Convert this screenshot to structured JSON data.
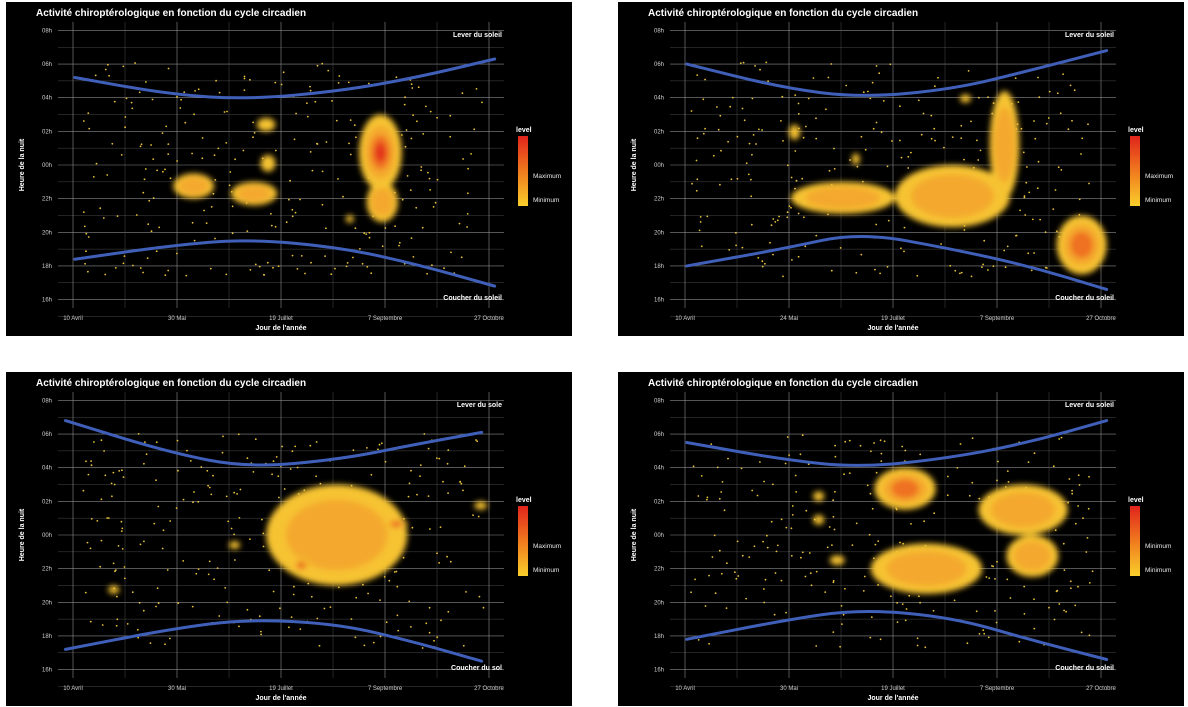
{
  "chart_data": [
    {
      "type": "heatmap",
      "title": "Activité chiroptérologique en fonction du cycle circadien",
      "xlabel": "Jour de l'année",
      "ylabel": "Heure de la nuit",
      "x_ticks": [
        "10 Avril",
        "30 Mai",
        "19 Juillet",
        "7 Septembre",
        "27 Octobre"
      ],
      "y_ticks": [
        "08h",
        "06h",
        "04h",
        "02h",
        "00h",
        "22h",
        "20h",
        "18h",
        "16h"
      ],
      "xlim": [
        "2021-03-11",
        "2021-11-06"
      ],
      "ylim": [
        15.5,
        32.5
      ],
      "sunrise_label": "Lever du soleil",
      "sunset_label": "Coucher du soleil",
      "legend": {
        "title": "level",
        "max_label": "Maximum",
        "min_label": "Minimum"
      },
      "sunrise_curve": [
        [
          "2021-03-20",
          29.2
        ],
        [
          "2021-05-10",
          28.2
        ],
        [
          "2021-06-21",
          27.9
        ],
        [
          "2021-08-10",
          28.4
        ],
        [
          "2021-09-20",
          29.2
        ],
        [
          "2021-11-01",
          30.3
        ]
      ],
      "sunset_curve": [
        [
          "2021-03-20",
          18.4
        ],
        [
          "2021-05-10",
          19.2
        ],
        [
          "2021-06-21",
          19.6
        ],
        [
          "2021-08-10",
          19.1
        ],
        [
          "2021-09-20",
          18.1
        ],
        [
          "2021-11-01",
          16.8
        ]
      ],
      "density_areas": [
        {
          "x": [
            "2021-05-12",
            "2021-06-03"
          ],
          "y": [
            22.0,
            23.5
          ],
          "level": 0.55
        },
        {
          "x": [
            "2021-06-12",
            "2021-07-07"
          ],
          "y": [
            21.6,
            23.0
          ],
          "level": 0.4
        },
        {
          "x": [
            "2021-06-26",
            "2021-07-06"
          ],
          "y": [
            26.0,
            26.8
          ],
          "level": 0.2
        },
        {
          "x": [
            "2021-06-28",
            "2021-07-06"
          ],
          "y": [
            23.6,
            24.6
          ],
          "level": 0.2
        },
        {
          "x": [
            "2021-08-13",
            "2021-08-17"
          ],
          "y": [
            20.6,
            21.0
          ],
          "level": 0.15
        },
        {
          "x": [
            "2021-08-20",
            "2021-09-12"
          ],
          "y": [
            22.5,
            27.0
          ],
          "level": 0.85
        },
        {
          "x": [
            "2021-08-24",
            "2021-09-10"
          ],
          "y": [
            20.6,
            23.0
          ],
          "level": 0.5
        }
      ]
    },
    {
      "type": "heatmap",
      "title": "Activité chiroptérologique en fonction du cycle circadien",
      "xlabel": "Jour de l'année",
      "ylabel": "Heure de la nuit",
      "x_ticks": [
        "10 Avril",
        "24 Mai",
        "19 Juillet",
        "7 Septembre",
        "27 Octobre"
      ],
      "y_ticks": [
        "08h",
        "06h",
        "04h",
        "02h",
        "00h",
        "22h",
        "20h",
        "18h",
        "16h"
      ],
      "xlim": [
        "2021-03-11",
        "2021-11-06"
      ],
      "ylim": [
        15.5,
        32.5
      ],
      "sunrise_label": "Lever du soleil",
      "sunset_label": "Coucher du soleil",
      "legend": {
        "title": "level",
        "max_label": "Maximum",
        "min_label": "Minimum"
      },
      "sunrise_curve": [
        [
          "2021-03-20",
          30.0
        ],
        [
          "2021-05-10",
          28.6
        ],
        [
          "2021-06-21",
          28.0
        ],
        [
          "2021-08-10",
          28.5
        ],
        [
          "2021-09-20",
          29.6
        ],
        [
          "2021-11-01",
          30.8
        ]
      ],
      "sunset_curve": [
        [
          "2021-03-20",
          18.0
        ],
        [
          "2021-05-10",
          19.0
        ],
        [
          "2021-06-21",
          20.0
        ],
        [
          "2021-08-10",
          19.0
        ],
        [
          "2021-09-20",
          18.0
        ],
        [
          "2021-11-01",
          16.6
        ]
      ],
      "density_areas": [
        {
          "x": [
            "2021-05-14",
            "2021-05-20"
          ],
          "y": [
            25.5,
            26.4
          ],
          "level": 0.2
        },
        {
          "x": [
            "2021-06-17",
            "2021-06-21"
          ],
          "y": [
            24.0,
            24.7
          ],
          "level": 0.15
        },
        {
          "x": [
            "2021-05-15",
            "2021-07-10"
          ],
          "y": [
            21.1,
            23.0
          ],
          "level": 0.5
        },
        {
          "x": [
            "2021-07-10",
            "2021-09-10"
          ],
          "y": [
            20.3,
            24.0
          ],
          "level": 0.6
        },
        {
          "x": [
            "2021-08-30",
            "2021-09-15"
          ],
          "y": [
            22.0,
            28.4
          ],
          "level": 0.55
        },
        {
          "x": [
            "2021-08-14",
            "2021-08-20"
          ],
          "y": [
            27.7,
            28.2
          ],
          "level": 0.2
        },
        {
          "x": [
            "2021-10-05",
            "2021-11-01"
          ],
          "y": [
            17.5,
            21.0
          ],
          "level": 0.7
        }
      ]
    },
    {
      "type": "heatmap",
      "title": "Activité chiroptérologique en fonction du cycle circadien",
      "xlabel": "Jour de l'année",
      "ylabel": "Heure de la nuit",
      "x_ticks": [
        "10 Avril",
        "30 Mai",
        "19 Juillet",
        "7 Septembre",
        "27 Octobre"
      ],
      "y_ticks": [
        "08h",
        "06h",
        "04h",
        "02h",
        "00h",
        "22h",
        "20h",
        "18h",
        "16h"
      ],
      "xlim": [
        "2021-03-11",
        "2021-11-06"
      ],
      "ylim": [
        15.5,
        32.5
      ],
      "sunrise_label": "Lever du sole",
      "sunset_label": "Coucher du sol",
      "legend": {
        "title": "level",
        "max_label": "Maximum",
        "min_label": "Minimum"
      },
      "sunrise_curve": [
        [
          "2021-03-15",
          30.8
        ],
        [
          "2021-05-10",
          28.9
        ],
        [
          "2021-06-21",
          28.0
        ],
        [
          "2021-08-10",
          28.5
        ],
        [
          "2021-09-20",
          29.4
        ],
        [
          "2021-10-25",
          30.1
        ]
      ],
      "sunset_curve": [
        [
          "2021-03-15",
          17.2
        ],
        [
          "2021-05-10",
          18.4
        ],
        [
          "2021-06-21",
          19.0
        ],
        [
          "2021-08-10",
          18.7
        ],
        [
          "2021-09-20",
          17.6
        ],
        [
          "2021-10-25",
          16.5
        ]
      ],
      "density_areas": [
        {
          "x": [
            "2021-07-01",
            "2021-09-15"
          ],
          "y": [
            21.0,
            27.0
          ],
          "level": 0.55
        },
        {
          "x": [
            "2021-09-03",
            "2021-09-15"
          ],
          "y": [
            24.3,
            25.0
          ],
          "level": 0.85
        },
        {
          "x": [
            "2021-07-15",
            "2021-07-25"
          ],
          "y": [
            21.8,
            22.6
          ],
          "level": 0.85
        },
        {
          "x": [
            "2021-06-11",
            "2021-06-17"
          ],
          "y": [
            23.2,
            23.6
          ],
          "level": 0.15
        },
        {
          "x": [
            "2021-04-07",
            "2021-04-13"
          ],
          "y": [
            20.5,
            21.0
          ],
          "level": 0.15
        },
        {
          "x": [
            "2021-10-21",
            "2021-10-28"
          ],
          "y": [
            25.5,
            26.0
          ],
          "level": 0.15
        }
      ]
    },
    {
      "type": "heatmap",
      "title": "Activité chiroptérologique en fonction du cycle circadien",
      "xlabel": "Jour de l'année",
      "ylabel": "Heure de la nuit",
      "x_ticks": [
        "10 Avril",
        "30 Mai",
        "19 Juillet",
        "7 Septembre",
        "27 Octobre"
      ],
      "y_ticks": [
        "08h",
        "06h",
        "04h",
        "02h",
        "00h",
        "22h",
        "20h",
        "18h",
        "16h"
      ],
      "xlim": [
        "2021-03-11",
        "2021-11-06"
      ],
      "ylim": [
        15.5,
        32.5
      ],
      "sunrise_label": "Lever du soleil",
      "sunset_label": "Coucher du soleil",
      "legend": {
        "title": "level",
        "max_label": "Minimum",
        "min_label": "Minimum"
      },
      "sunrise_curve": [
        [
          "2021-03-20",
          29.5
        ],
        [
          "2021-05-10",
          28.5
        ],
        [
          "2021-06-21",
          28.0
        ],
        [
          "2021-08-10",
          28.6
        ],
        [
          "2021-09-20",
          29.5
        ],
        [
          "2021-11-01",
          30.8
        ]
      ],
      "sunset_curve": [
        [
          "2021-03-20",
          17.8
        ],
        [
          "2021-05-10",
          18.9
        ],
        [
          "2021-06-21",
          19.6
        ],
        [
          "2021-08-10",
          19.1
        ],
        [
          "2021-09-20",
          17.8
        ],
        [
          "2021-11-01",
          16.6
        ]
      ],
      "density_areas": [
        {
          "x": [
            "2021-06-29",
            "2021-08-01"
          ],
          "y": [
            25.5,
            28.0
          ],
          "level": 0.75
        },
        {
          "x": [
            "2021-06-27",
            "2021-08-26"
          ],
          "y": [
            20.5,
            23.5
          ],
          "level": 0.5
        },
        {
          "x": [
            "2021-08-24",
            "2021-10-11"
          ],
          "y": [
            24.0,
            27.0
          ],
          "level": 0.45
        },
        {
          "x": [
            "2021-09-08",
            "2021-10-06"
          ],
          "y": [
            21.5,
            24.0
          ],
          "level": 0.45
        },
        {
          "x": [
            "2021-05-27",
            "2021-06-02"
          ],
          "y": [
            26.0,
            26.6
          ],
          "level": 0.2
        },
        {
          "x": [
            "2021-05-27",
            "2021-06-02"
          ],
          "y": [
            24.6,
            25.2
          ],
          "level": 0.2
        },
        {
          "x": [
            "2021-06-05",
            "2021-06-13"
          ],
          "y": [
            22.2,
            22.8
          ],
          "level": 0.15
        }
      ]
    }
  ]
}
